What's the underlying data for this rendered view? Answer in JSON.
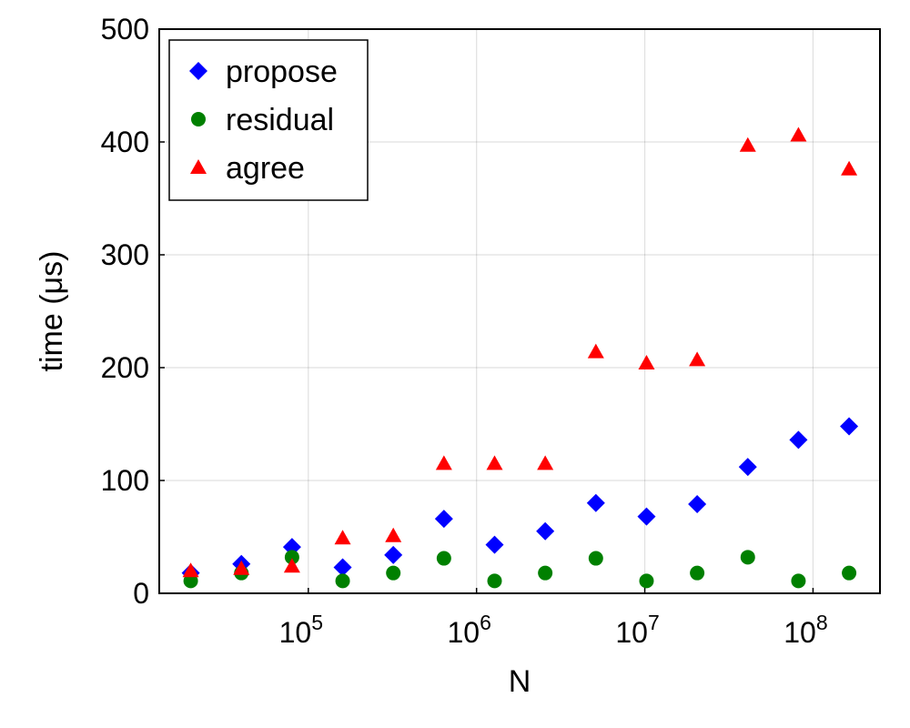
{
  "chart_data": {
    "type": "scatter",
    "title": "",
    "xlabel": "N",
    "ylabel": "time (μs)",
    "xscale": "log",
    "xlim": [
      13000,
      250000000
    ],
    "ylim": [
      0,
      500
    ],
    "x_ticks": [
      {
        "value": 100000,
        "base": "10",
        "exp": "5"
      },
      {
        "value": 1000000,
        "base": "10",
        "exp": "6"
      },
      {
        "value": 10000000,
        "base": "10",
        "exp": "7"
      },
      {
        "value": 100000000,
        "base": "10",
        "exp": "8"
      }
    ],
    "y_ticks": [
      {
        "value": 0,
        "label": "0"
      },
      {
        "value": 100,
        "label": "100"
      },
      {
        "value": 200,
        "label": "200"
      },
      {
        "value": 300,
        "label": "300"
      },
      {
        "value": 400,
        "label": "400"
      },
      {
        "value": 500,
        "label": "500"
      }
    ],
    "grid": true,
    "legend_position": "top-left",
    "x": [
      20000,
      40000,
      80000,
      160000,
      320000,
      640000,
      1280000,
      2560000,
      5120000,
      10240000,
      20480000,
      40960000,
      81920000,
      163840000
    ],
    "series": [
      {
        "name": "propose",
        "marker": "diamond",
        "color": "#0000ff",
        "values": [
          18,
          26,
          41,
          23,
          34,
          66,
          43,
          55,
          80,
          68,
          79,
          112,
          136,
          148
        ]
      },
      {
        "name": "residual",
        "marker": "circle",
        "color": "#008000",
        "values": [
          11,
          18,
          32,
          11,
          18,
          31,
          11,
          18,
          31,
          11,
          18,
          32,
          11,
          18
        ]
      },
      {
        "name": "agree",
        "marker": "triangle",
        "color": "#ff0000",
        "values": [
          20,
          22,
          24,
          49,
          51,
          115,
          115,
          115,
          214,
          204,
          207,
          397,
          406,
          376
        ]
      }
    ]
  }
}
